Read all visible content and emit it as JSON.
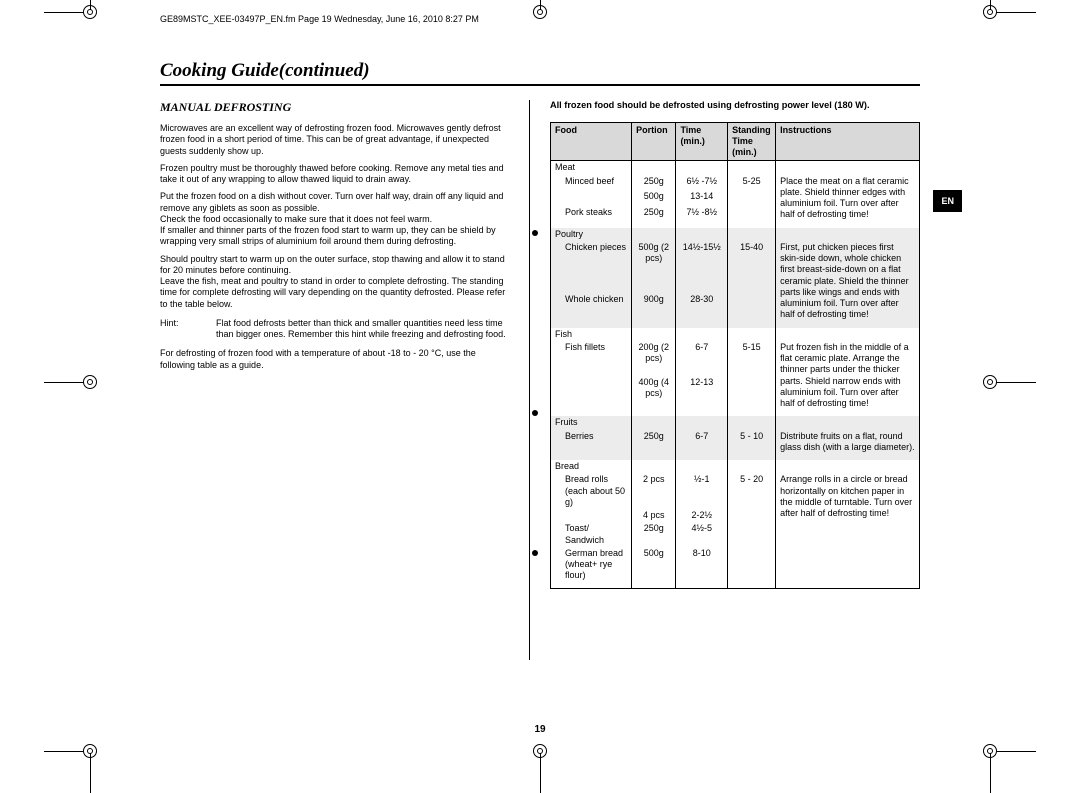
{
  "header_line": "GE89MSTC_XEE-03497P_EN.fm  Page 19  Wednesday, June 16, 2010  8:27 PM",
  "title": "Cooking Guide(continued)",
  "subhead": "MANUAL DEFROSTING",
  "pagenum": "19",
  "en_tab": "EN",
  "left": {
    "p1": "Microwaves are an excellent way of defrosting frozen food. Microwaves gently defrost frozen food in a short period of time. This can be of great advantage, if unexpected guests suddenly show up.",
    "p2": "Frozen poultry must be thoroughly thawed before cooking. Remove any metal ties and take it out of any wrapping to allow thawed liquid to drain away.",
    "p3": "Put the frozen food on a dish without cover. Turn over half way, drain off any liquid and remove any giblets as soon as possible.",
    "p4": "Check the food occasionally to make sure that it does not feel warm.",
    "p5": "If smaller and thinner parts of the frozen food start to warm up, they can be shield by wrapping very small strips of aluminium foil around them during defrosting.",
    "p6": "Should poultry start to warm  up on the outer surface, stop thawing and allow it to stand for 20 minutes before continuing.",
    "p7": "Leave the fish, meat and poultry to stand in order to complete defrosting. The standing time for complete defrosting will vary depending on the quantity defrosted. Please refer to the table below.",
    "hint_label": "Hint:",
    "hint_body": "Flat food defrosts better than thick and smaller quantities need less time than bigger ones. Remember this hint while freezing and defrosting food.",
    "p8": "For defrosting of frozen food with a temperature of about -18 to - 20 °C, use the following table as a guide."
  },
  "table_intro": "All frozen food should be defrosted using defrosting power level (180 W).",
  "table": {
    "headers": [
      "Food",
      "Portion",
      "Time (min.)",
      "Standing Time (min.)",
      "Instructions"
    ],
    "col_widths": [
      "22%",
      "12%",
      "14%",
      "13%",
      "39%"
    ],
    "sections": [
      {
        "group": "Meat",
        "shade": false,
        "rows": [
          {
            "name": "Minced beef",
            "portion": "250g",
            "time": "6½ -7½",
            "stand": "5-25",
            "instr": "Place the meat on a flat ceramic plate. Shield thinner edges with aluminium foil. Turn over after half of defrosting time!",
            "instr_rowspan": 3
          },
          {
            "name": "",
            "portion": "500g",
            "time": "13-14",
            "stand": ""
          },
          {
            "name": "Pork steaks",
            "portion": "250g",
            "time": "7½ -8½",
            "stand": ""
          }
        ]
      },
      {
        "group": "Poultry",
        "shade": true,
        "rows": [
          {
            "name": "Chicken pieces",
            "portion": "500g (2 pcs)",
            "time": "14½-15½",
            "stand": "15-40",
            "instr": "First, put chicken pieces first skin-side down, whole chicken first breast-side-down on a flat ceramic plate.\nShield the thinner parts like wings and ends with aluminium foil. Turn over after half of defrosting time!",
            "instr_rowspan": 2
          },
          {
            "name": "Whole chicken",
            "portion": "900g",
            "time": "28-30",
            "stand": ""
          }
        ]
      },
      {
        "group": "Fish",
        "shade": false,
        "rows": [
          {
            "name": "Fish fillets",
            "portion": "200g (2 pcs)",
            "time": "6-7",
            "stand": "5-15",
            "instr": "Put frozen fish in the middle of a flat ceramic plate.\nArrange the thinner parts under the thicker parts. Shield narrow ends with aluminium foil.\nTurn over after half of defrosting time!",
            "instr_rowspan": 2
          },
          {
            "name": "",
            "portion": "400g (4 pcs)",
            "time": "12-13",
            "stand": ""
          }
        ]
      },
      {
        "group": "Fruits",
        "shade": true,
        "rows": [
          {
            "name": "Berries",
            "portion": "250g",
            "time": "6-7",
            "stand": "5 - 10",
            "instr": "Distribute fruits on a flat, round glass dish (with a large diameter).",
            "instr_rowspan": 1
          }
        ]
      },
      {
        "group": "Bread",
        "shade": false,
        "rows": [
          {
            "name": "Bread rolls (each about 50 g)",
            "portion": "2 pcs",
            "time": "½-1",
            "stand": "5 - 20",
            "instr": "Arrange rolls in a circle or bread horizontally on kitchen paper in the middle of turntable.\nTurn over after half of defrosting time!",
            "instr_rowspan": 4
          },
          {
            "name": "",
            "portion": "4 pcs",
            "time": "2-2½",
            "stand": ""
          },
          {
            "name": "Toast/ Sandwich",
            "portion": "250g",
            "time": "4½-5",
            "stand": ""
          },
          {
            "name": "German bread (wheat+ rye flour)",
            "portion": "500g",
            "time": "8-10",
            "stand": ""
          }
        ]
      }
    ]
  }
}
